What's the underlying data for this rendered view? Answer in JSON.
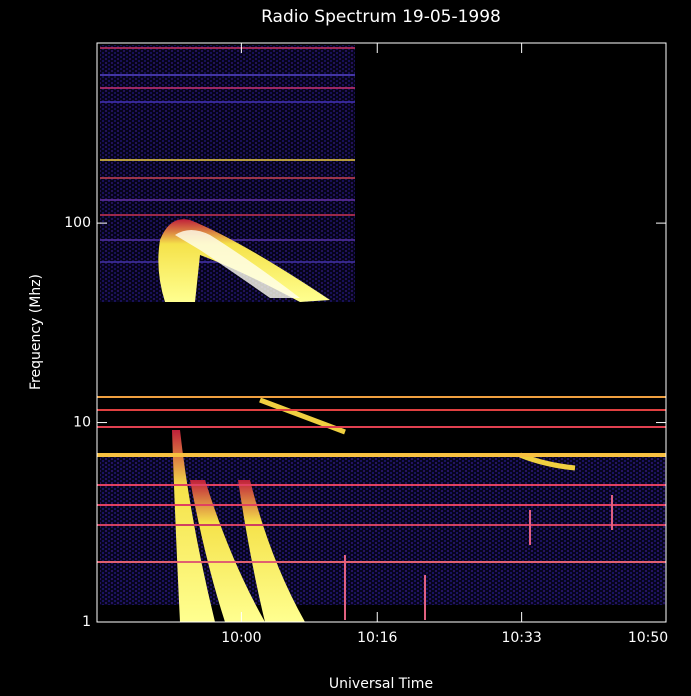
{
  "chart_data": {
    "type": "spectrogram",
    "title": "Radio Spectrum 19-05-1998",
    "x_label": "Universal Time",
    "y_label": "Frequency (Mhz)",
    "xlim": [
      583,
      650
    ],
    "xticks": [
      {
        "value": 600,
        "label": "10:00"
      },
      {
        "value": 616,
        "label": "10:16"
      },
      {
        "value": 633,
        "label": "10:33"
      },
      {
        "value": 650,
        "label": "10:50"
      }
    ],
    "ylim": [
      1,
      800
    ],
    "yticks": [
      1,
      10,
      100
    ],
    "y_scale": "log"
  }
}
